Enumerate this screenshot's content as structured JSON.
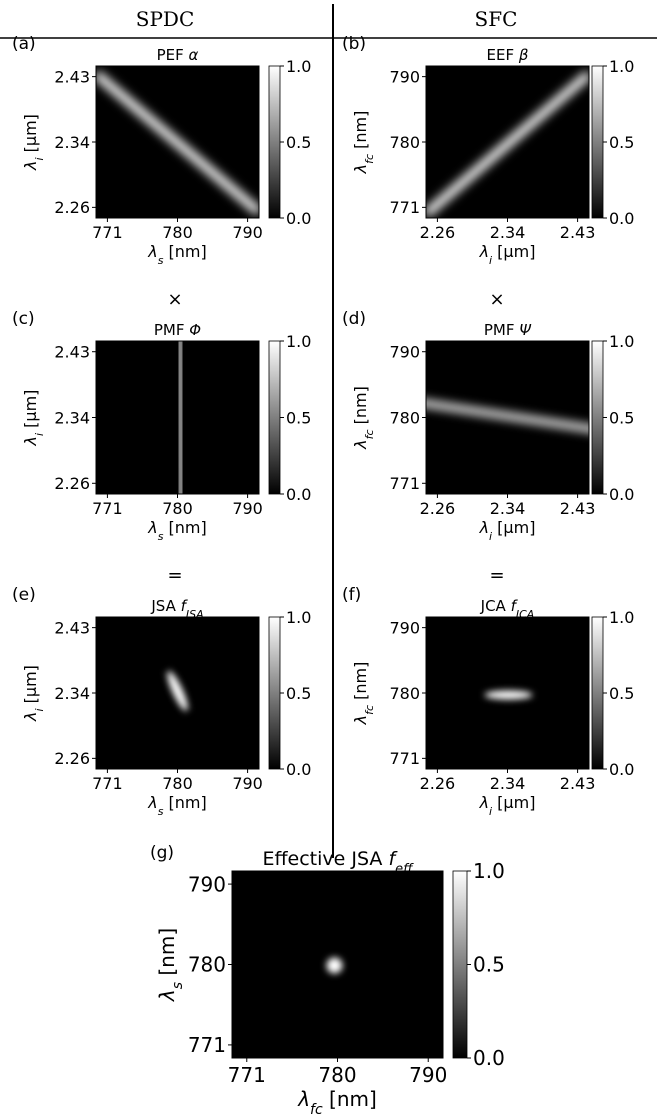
{
  "header": {
    "left": "SPDC",
    "right": "SFC"
  },
  "operators": {
    "times": "×",
    "equals": "="
  },
  "panels": [
    {
      "id": "a",
      "label": "(a)",
      "title": "PEF",
      "title_sym": "α",
      "title_sub": "",
      "kind": "anti",
      "xlabel": "λ",
      "xsub": "s",
      "xunit": " [nm]",
      "xticks": [
        "771",
        "780",
        "790"
      ],
      "ylabel": "λ",
      "ysub": "i",
      "yunit": " [μm]",
      "yticks": [
        "2.43",
        "2.34",
        "2.26"
      ]
    },
    {
      "id": "b",
      "label": "(b)",
      "title": "EEF",
      "title_sym": "β",
      "title_sub": "",
      "kind": "diag",
      "xlabel": "λ",
      "xsub": "i",
      "xunit": " [μm]",
      "xticks": [
        "2.26",
        "2.34",
        "2.43"
      ],
      "ylabel": "λ",
      "ysub": "fc",
      "yunit": " [nm]",
      "yticks": [
        "790",
        "780",
        "771"
      ]
    },
    {
      "id": "c",
      "label": "(c)",
      "title": "PMF",
      "title_sym": "Φ",
      "title_sub": "",
      "kind": "vband",
      "xlabel": "λ",
      "xsub": "s",
      "xunit": " [nm]",
      "xticks": [
        "771",
        "780",
        "790"
      ],
      "ylabel": "λ",
      "ysub": "i",
      "yunit": " [μm]",
      "yticks": [
        "2.43",
        "2.34",
        "2.26"
      ]
    },
    {
      "id": "d",
      "label": "(d)",
      "title": "PMF",
      "title_sym": "Ψ",
      "title_sub": "",
      "kind": "hband",
      "xlabel": "λ",
      "xsub": "i",
      "xunit": " [μm]",
      "xticks": [
        "2.26",
        "2.34",
        "2.43"
      ],
      "ylabel": "λ",
      "ysub": "fc",
      "yunit": " [nm]",
      "yticks": [
        "790",
        "780",
        "771"
      ]
    },
    {
      "id": "e",
      "label": "(e)",
      "title": "JSA",
      "title_sym": "f",
      "title_sub": "JSA",
      "kind": "spotTilt",
      "xlabel": "λ",
      "xsub": "s",
      "xunit": " [nm]",
      "xticks": [
        "771",
        "780",
        "790"
      ],
      "ylabel": "λ",
      "ysub": "i",
      "yunit": " [μm]",
      "yticks": [
        "2.43",
        "2.34",
        "2.26"
      ]
    },
    {
      "id": "f",
      "label": "(f)",
      "title": "JCA",
      "title_sym": "f",
      "title_sub": "JCA",
      "kind": "spotH",
      "xlabel": "λ",
      "xsub": "i",
      "xunit": " [μm]",
      "xticks": [
        "2.26",
        "2.34",
        "2.43"
      ],
      "ylabel": "λ",
      "ysub": "fc",
      "yunit": " [nm]",
      "yticks": [
        "790",
        "780",
        "771"
      ]
    },
    {
      "id": "g",
      "label": "(g)",
      "title": "Effective JSA",
      "title_sym": "f",
      "title_sub": "eff",
      "kind": "spotRound",
      "xlabel": "λ",
      "xsub": "fc",
      "xunit": " [nm]",
      "xticks": [
        "771",
        "780",
        "790"
      ],
      "ylabel": "λ",
      "ysub": "s",
      "yunit": " [nm]",
      "yticks": [
        "790",
        "780",
        "771"
      ]
    }
  ],
  "colorbar": {
    "ticks": [
      "1.0",
      "0.5",
      "0.0"
    ]
  }
}
